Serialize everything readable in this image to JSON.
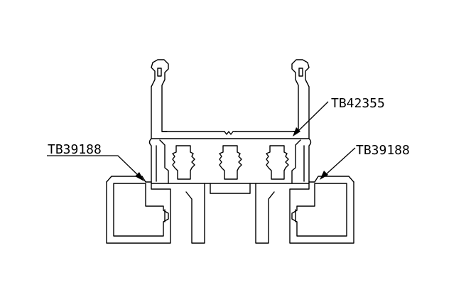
{
  "drawing": {
    "labels": {
      "left": "TB39188",
      "top_right": "TB42355",
      "right": "TB39188"
    }
  }
}
